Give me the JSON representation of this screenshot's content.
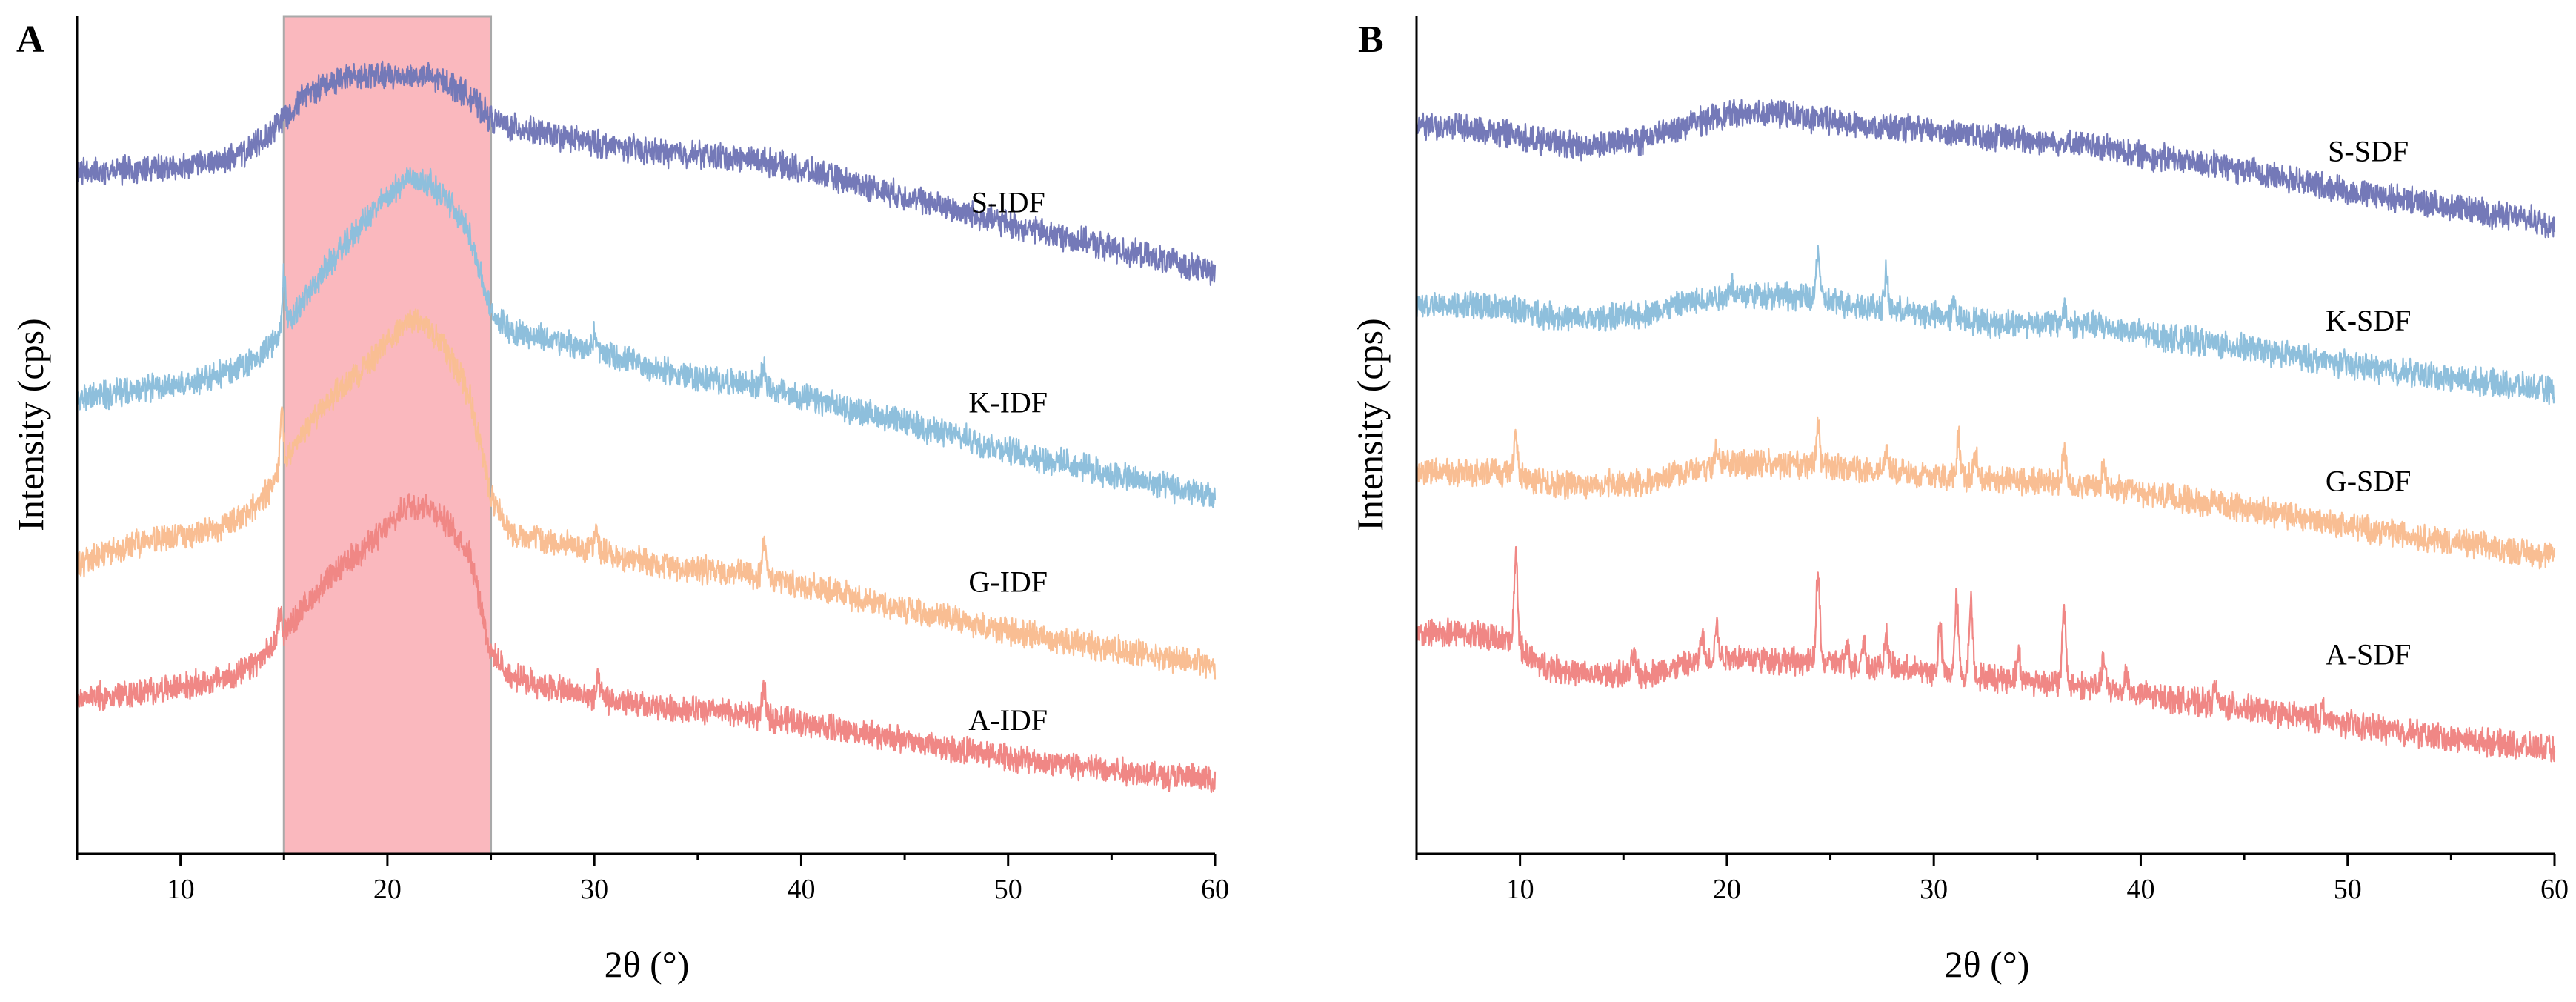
{
  "chart_data": [
    {
      "type": "line",
      "panel_label": "A",
      "xlabel": "2θ (°)",
      "ylabel": "Intensity (cps)",
      "xlim": [
        5,
        60
      ],
      "ylim": [
        0,
        100
      ],
      "x_ticks": [
        10,
        20,
        30,
        40,
        50,
        60
      ],
      "x_tick_labels": [
        "10",
        "20",
        "30",
        "40",
        "50",
        "60"
      ],
      "highlight_region": {
        "x_start": 15,
        "x_end": 25,
        "color": "#f8a0a8"
      },
      "series": [
        {
          "name": "S-IDF",
          "color": "#7479b8",
          "label": "S-IDF",
          "x": [
            5,
            8,
            11,
            13,
            14,
            15,
            16,
            17,
            18,
            19,
            20,
            21,
            22,
            23,
            24,
            25,
            26,
            28,
            30,
            33,
            35,
            38,
            40,
            45,
            50,
            55,
            60
          ],
          "y": [
            81.5,
            81.6,
            82.2,
            83.5,
            85.2,
            88.0,
            90.5,
            92.0,
            92.6,
            93.0,
            92.8,
            93.0,
            92.7,
            92.0,
            90.4,
            87.7,
            86.8,
            85.8,
            84.8,
            83.8,
            83.5,
            82.8,
            81.7,
            78.5,
            75.2,
            72.3,
            69.5
          ],
          "spikes": [],
          "label_at": [
            50,
            76.6
          ]
        },
        {
          "name": "K-IDF",
          "color": "#8ebfdc",
          "label": "K-IDF",
          "x": [
            5,
            8,
            11,
            13,
            14,
            15,
            16,
            17,
            18,
            19,
            20,
            21,
            22,
            23,
            24,
            25,
            26,
            28,
            30,
            33,
            35,
            38,
            40,
            45,
            50,
            55,
            60
          ],
          "y": [
            54.2,
            55.4,
            56.5,
            58.2,
            59.8,
            62.4,
            66.2,
            69.8,
            72.8,
            75.9,
            78.5,
            80.8,
            80.2,
            77.8,
            74.0,
            64.5,
            62.5,
            61.3,
            60.1,
            57.8,
            56.8,
            55.9,
            54.5,
            51.5,
            48.2,
            45.3,
            42.5
          ],
          "spikes": [
            [
              15,
              7
            ],
            [
              30,
              2
            ],
            [
              38.2,
              2.5
            ]
          ],
          "label_at": [
            50,
            52.7
          ]
        },
        {
          "name": "G-IDF",
          "color": "#f9be93",
          "label": "G-IDF",
          "x": [
            5,
            8,
            11,
            13,
            14,
            15,
            16,
            17,
            18,
            19,
            20,
            21,
            22,
            23,
            24,
            25,
            26,
            28,
            30,
            33,
            35,
            38,
            40,
            45,
            50,
            55,
            60
          ],
          "y": [
            34.6,
            37.2,
            38.3,
            40.2,
            42.4,
            46.5,
            50.5,
            53.8,
            56.0,
            58.4,
            61.0,
            63.8,
            63.0,
            59.4,
            54.5,
            42.9,
            38.3,
            37.2,
            36.3,
            34.4,
            34.0,
            33.2,
            32.1,
            29.2,
            26.6,
            24.5,
            22.5
          ],
          "spikes": [
            [
              14.9,
              6
            ],
            [
              30.1,
              2.5
            ],
            [
              38.2,
              4
            ]
          ],
          "label_at": [
            50,
            31.3
          ]
        },
        {
          "name": "A-IDF",
          "color": "#f08785",
          "label": "A-IDF",
          "x": [
            5,
            8,
            11,
            13,
            14,
            15,
            16,
            17,
            18,
            19,
            20,
            21,
            22,
            23,
            24,
            25,
            26,
            28,
            30,
            33,
            35,
            38,
            40,
            45,
            50,
            55,
            60
          ],
          "y": [
            18.5,
            19.2,
            20.3,
            21.6,
            23.4,
            26.5,
            29.5,
            32.4,
            34.7,
            36.8,
            38.9,
            41.7,
            41.6,
            39.2,
            35.9,
            23.9,
            21.1,
            19.8,
            18.6,
            17.4,
            17.2,
            16.5,
            15.7,
            13.5,
            11.5,
            10.0,
            8.8
          ],
          "spikes": [
            [
              14.8,
              3
            ],
            [
              30.2,
              2
            ],
            [
              38.2,
              3
            ]
          ],
          "label_at": [
            50,
            14.8
          ]
        }
      ]
    },
    {
      "type": "line",
      "panel_label": "B",
      "xlabel": "2θ (°)",
      "ylabel": "Intensity (cps)",
      "xlim": [
        5,
        60
      ],
      "ylim": [
        0,
        100
      ],
      "x_ticks": [
        10,
        20,
        30,
        40,
        50,
        60
      ],
      "x_tick_labels": [
        "10",
        "20",
        "30",
        "40",
        "50",
        "60"
      ],
      "series": [
        {
          "name": "S-SDF",
          "color": "#7479b8",
          "label": "S-SDF",
          "x": [
            5,
            8,
            10,
            13,
            16,
            18,
            20,
            22,
            24,
            26,
            28,
            30,
            33,
            35,
            38,
            40,
            45,
            50,
            55,
            60
          ],
          "y": [
            87.0,
            86.6,
            85.6,
            84.4,
            85.3,
            87.0,
            88.3,
            88.6,
            87.8,
            87.2,
            86.7,
            86.3,
            85.6,
            85.2,
            84.4,
            83.5,
            81.7,
            79.2,
            77.2,
            75.2
          ],
          "spikes": [],
          "label_at": [
            51,
            82.7
          ]
        },
        {
          "name": "K-SDF",
          "color": "#8ebfdc",
          "label": "K-SDF",
          "x": [
            5,
            8,
            10,
            13,
            16,
            18,
            20,
            22,
            24,
            26,
            28,
            30,
            33,
            35,
            38,
            40,
            45,
            50,
            55,
            60
          ],
          "y": [
            65.5,
            65.4,
            64.9,
            63.7,
            64.4,
            65.7,
            66.7,
            66.8,
            66.3,
            65.6,
            65.0,
            64.3,
            63.3,
            63.4,
            63.1,
            62.1,
            60.4,
            58.4,
            56.8,
            55.3
          ],
          "spikes": [
            [
              20.2,
              1.5
            ],
            [
              24.4,
              6
            ],
            [
              27.7,
              4
            ],
            [
              31,
              2
            ],
            [
              36.3,
              2
            ]
          ],
          "label_at": [
            51,
            62.5
          ]
        },
        {
          "name": "G-SDF",
          "color": "#f9be93",
          "label": "G-SDF",
          "x": [
            5,
            8,
            9,
            10,
            11,
            13,
            16,
            18,
            20,
            22,
            24,
            26,
            28,
            30,
            33,
            35,
            38,
            40,
            45,
            50,
            55,
            60
          ],
          "y": [
            45.5,
            45.6,
            45.8,
            45.0,
            44.2,
            44.0,
            44.4,
            45.6,
            46.6,
            46.5,
            46.3,
            45.9,
            45.6,
            45.3,
            44.7,
            44.5,
            43.8,
            43.0,
            41.3,
            39.2,
            37.3,
            35.5
          ],
          "spikes": [
            [
              9.8,
              5
            ],
            [
              19.5,
              2
            ],
            [
              24.4,
              5
            ],
            [
              27.7,
              2.5
            ],
            [
              31.2,
              4.5
            ],
            [
              32,
              3
            ],
            [
              36.3,
              4
            ],
            [
              38.2,
              2
            ]
          ],
          "label_at": [
            51,
            43.3
          ]
        },
        {
          "name": "A-SDF",
          "color": "#f08785",
          "label": "A-SDF",
          "x": [
            5,
            8,
            9,
            10,
            11,
            13,
            16,
            18,
            20,
            22,
            24,
            26,
            28,
            30,
            33,
            35,
            38,
            40,
            45,
            50,
            55,
            60
          ],
          "y": [
            26.5,
            26.0,
            25.8,
            24.5,
            22.6,
            21.4,
            21.4,
            22.5,
            23.6,
            23.2,
            22.9,
            22.6,
            22.2,
            21.7,
            21.0,
            20.6,
            19.9,
            19.0,
            17.4,
            15.5,
            13.8,
            12.4
          ],
          "spikes": [
            [
              9.8,
              11
            ],
            [
              15.5,
              2.5
            ],
            [
              18.8,
              3
            ],
            [
              19.5,
              4
            ],
            [
              24.4,
              11
            ],
            [
              25.8,
              2
            ],
            [
              26.6,
              3
            ],
            [
              27.7,
              4
            ],
            [
              30.3,
              5.5
            ],
            [
              31.1,
              9
            ],
            [
              31.8,
              9
            ],
            [
              34.1,
              3
            ],
            [
              36.3,
              9
            ],
            [
              38.2,
              3.5
            ],
            [
              39.3,
              2.5
            ],
            [
              43.6,
              2
            ],
            [
              48.8,
              1.5
            ]
          ],
          "label_at": [
            51,
            22.6
          ]
        }
      ]
    }
  ]
}
